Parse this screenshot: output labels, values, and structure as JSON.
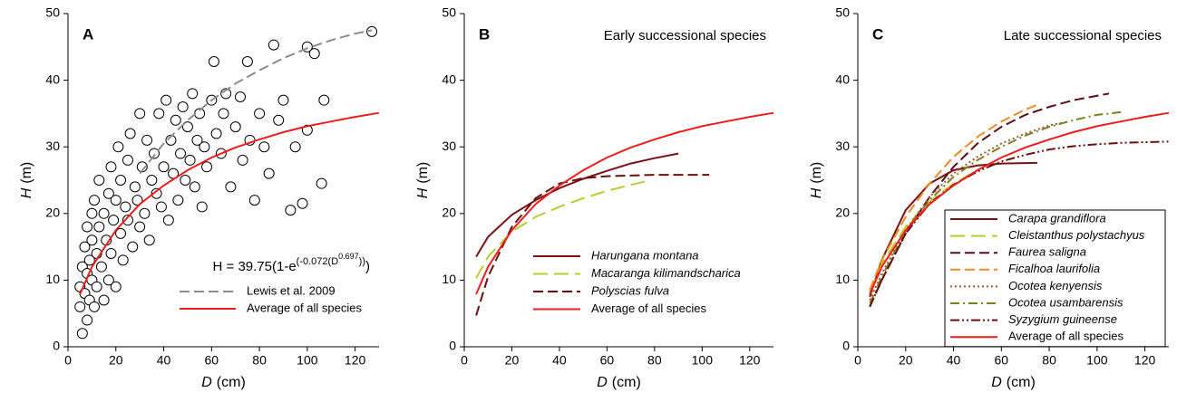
{
  "chart_data": [
    {
      "type": "scatter",
      "label": "A",
      "xlabel": {
        "symbol": "D",
        "unit": "(cm)"
      },
      "ylabel": {
        "symbol": "H",
        "unit": "(m)"
      },
      "xlim": [
        0,
        130
      ],
      "xticks": [
        0,
        20,
        40,
        60,
        80,
        100,
        120
      ],
      "ylim": [
        0,
        50
      ],
      "yticks": [
        0,
        10,
        20,
        30,
        40,
        50
      ],
      "annotation": [
        "H = 39.75(1-e",
        "(-0.072(D",
        "0.697",
        "))",
        ")"
      ],
      "legend": "bottom-right",
      "series": [
        {
          "style": "markers",
          "color": "#000000",
          "x": [
            5,
            5,
            6,
            6,
            7,
            7,
            8,
            8,
            8,
            9,
            9,
            10,
            10,
            10,
            11,
            11,
            12,
            12,
            13,
            13,
            14,
            15,
            15,
            16,
            17,
            17,
            18,
            18,
            19,
            20,
            20,
            21,
            22,
            22,
            23,
            24,
            25,
            25,
            26,
            27,
            28,
            29,
            30,
            30,
            31,
            32,
            33,
            34,
            35,
            36,
            37,
            38,
            39,
            40,
            41,
            42,
            43,
            44,
            45,
            46,
            47,
            48,
            49,
            50,
            51,
            52,
            53,
            54,
            55,
            56,
            57,
            58,
            60,
            61,
            62,
            64,
            65,
            66,
            68,
            70,
            72,
            73,
            75,
            76,
            78,
            80,
            82,
            84,
            86,
            88,
            90,
            93,
            95,
            98,
            100,
            100,
            103,
            106,
            107,
            127
          ],
          "values": [
            9,
            6,
            2,
            12,
            8,
            15,
            4,
            11,
            18,
            7,
            13,
            20,
            10,
            16,
            6,
            22,
            14,
            9,
            18,
            25,
            12,
            20,
            7,
            16,
            23,
            10,
            27,
            14,
            19,
            22,
            9,
            30,
            17,
            25,
            13,
            21,
            28,
            19,
            32,
            15,
            24,
            22,
            35,
            18,
            27,
            20,
            31,
            16,
            25,
            29,
            23,
            35,
            21,
            27,
            37,
            19,
            31,
            26,
            34,
            22,
            29,
            36,
            25,
            33,
            28,
            38,
            24,
            31,
            35,
            21,
            30,
            27,
            37,
            42.8,
            32,
            29,
            35,
            38,
            24,
            33,
            37.5,
            28,
            42.8,
            31,
            22,
            35,
            30,
            26,
            45.3,
            34,
            37,
            20.5,
            30,
            21.5,
            32.5,
            45,
            44,
            24.5,
            37,
            47.3
          ]
        },
        {
          "name": "Lewis et al. 2009",
          "style": "dashed",
          "color": "#8c8c8c",
          "x": [
            30,
            40,
            50,
            60,
            70,
            80,
            90,
            100,
            110,
            120,
            127
          ],
          "values": [
            26,
            30.5,
            34,
            37,
            39.5,
            41.5,
            43.3,
            44.8,
            46,
            47,
            47.5
          ]
        },
        {
          "name": "Average of all species",
          "style": "solid",
          "color": "#ee1c1c",
          "x": [
            5,
            10,
            20,
            30,
            40,
            50,
            60,
            70,
            80,
            90,
            100,
            110,
            120,
            130
          ],
          "values": [
            7.9,
            12,
            17.5,
            21.4,
            24.2,
            26.5,
            28.4,
            29.9,
            31.1,
            32.2,
            33.1,
            33.8,
            34.5,
            35.1
          ]
        }
      ]
    },
    {
      "type": "line",
      "label": "B",
      "title": "Early successional species",
      "xlabel": {
        "symbol": "D",
        "unit": "(cm)"
      },
      "ylabel": {
        "symbol": "H",
        "unit": "(m)"
      },
      "xlim": [
        0,
        130
      ],
      "xticks": [
        0,
        20,
        40,
        60,
        80,
        100,
        120
      ],
      "ylim": [
        0,
        50
      ],
      "yticks": [
        0,
        10,
        20,
        30,
        40,
        50
      ],
      "legend": "bottom-center",
      "series": [
        {
          "name": "Harungana montana",
          "italic": true,
          "style": "solid",
          "color": "#7b1113",
          "x": [
            5,
            10,
            20,
            30,
            40,
            50,
            60,
            70,
            80,
            90
          ],
          "values": [
            13.5,
            16.5,
            19.8,
            22,
            23.8,
            25.2,
            26.4,
            27.5,
            28.3,
            29
          ]
        },
        {
          "name": "Macaranga kilimandscharica",
          "italic": true,
          "style": "longdash",
          "color": "#b8cc2c",
          "x": [
            5,
            10,
            20,
            30,
            40,
            50,
            60,
            70,
            76
          ],
          "values": [
            10.3,
            13.5,
            17.3,
            19.5,
            21,
            22.3,
            23.4,
            24.3,
            24.8
          ]
        },
        {
          "name": "Polyscias fulva",
          "italic": true,
          "style": "dashed",
          "color": "#6b0f10",
          "x": [
            5,
            10,
            20,
            30,
            40,
            50,
            60,
            80,
            103
          ],
          "values": [
            4.7,
            10.5,
            18,
            22.3,
            24.5,
            25.3,
            25.6,
            25.8,
            25.8
          ]
        },
        {
          "name": "Average of all species",
          "style": "solid",
          "color": "#ee1c1c",
          "x": [
            5,
            10,
            20,
            30,
            40,
            50,
            60,
            70,
            80,
            90,
            100,
            110,
            120,
            130
          ],
          "values": [
            7.9,
            12,
            17.5,
            21.4,
            24.2,
            26.5,
            28.4,
            29.9,
            31.1,
            32.2,
            33.1,
            33.8,
            34.5,
            35.1
          ]
        }
      ]
    },
    {
      "type": "line",
      "label": "C",
      "title": "Late successional species",
      "xlabel": {
        "symbol": "D",
        "unit": "(cm)"
      },
      "ylabel": {
        "symbol": "H",
        "unit": "(m)"
      },
      "xlim": [
        0,
        130
      ],
      "xticks": [
        0,
        20,
        40,
        60,
        80,
        100,
        120
      ],
      "ylim": [
        0,
        50
      ],
      "yticks": [
        0,
        10,
        20,
        30,
        40,
        50
      ],
      "legend": "bottom-left-boxed",
      "series": [
        {
          "name": "Carapa grandiflora",
          "italic": true,
          "style": "solid",
          "color": "#7b1113",
          "x": [
            5,
            10,
            20,
            30,
            40,
            50,
            60,
            75
          ],
          "values": [
            7.5,
            13,
            20.5,
            24.5,
            26.5,
            27.2,
            27.5,
            27.6
          ]
        },
        {
          "name": "Cleistanthus polystachyus",
          "italic": true,
          "style": "longdash",
          "color": "#b8cc2c",
          "x": [
            5,
            10,
            20,
            30,
            40,
            50
          ],
          "values": [
            8.3,
            12.5,
            18,
            21.8,
            24.5,
            26.5
          ]
        },
        {
          "name": "Faurea saligna",
          "italic": true,
          "style": "dashed",
          "color": "#5a0c0e",
          "x": [
            5,
            10,
            20,
            30,
            40,
            50,
            60,
            70,
            80,
            90,
            105
          ],
          "values": [
            6,
            10,
            17,
            22.5,
            27,
            30.5,
            33,
            34.8,
            36,
            37,
            38
          ]
        },
        {
          "name": "Ficalhoa laurifolia",
          "italic": true,
          "style": "dashed",
          "color": "#f08a24",
          "x": [
            5,
            10,
            20,
            30,
            40,
            50,
            60,
            70,
            75
          ],
          "values": [
            8.5,
            13,
            19.5,
            24.5,
            28.5,
            31.5,
            33.8,
            35.6,
            36.3
          ]
        },
        {
          "name": "Ocotea kenyensis",
          "italic": true,
          "style": "dotted",
          "color": "#9c5a2a",
          "x": [
            5,
            10,
            20,
            30,
            40,
            50,
            60,
            70,
            80,
            85
          ],
          "values": [
            7,
            11,
            17.5,
            22.5,
            26,
            28.5,
            30.5,
            32,
            33.2,
            33.6
          ]
        },
        {
          "name": "Ocotea usambarensis",
          "italic": true,
          "style": "dashdot",
          "color": "#7f7f22",
          "x": [
            5,
            10,
            20,
            30,
            40,
            50,
            60,
            70,
            80,
            90,
            100,
            110
          ],
          "values": [
            6.5,
            10.5,
            17.5,
            22,
            25.5,
            28,
            30,
            31.7,
            33,
            34,
            34.8,
            35.2
          ]
        },
        {
          "name": "Syzygium guineense",
          "italic": true,
          "style": "dashdotdot",
          "color": "#6b0f10",
          "x": [
            5,
            10,
            20,
            30,
            40,
            50,
            60,
            70,
            80,
            90,
            100,
            110,
            130
          ],
          "values": [
            6,
            10,
            17,
            21.5,
            24.3,
            26.3,
            27.8,
            28.8,
            29.6,
            30.1,
            30.4,
            30.6,
            30.8
          ]
        },
        {
          "name": "Average of all species",
          "style": "solid",
          "color": "#ee1c1c",
          "x": [
            5,
            10,
            20,
            30,
            40,
            50,
            60,
            70,
            80,
            90,
            100,
            110,
            120,
            130
          ],
          "values": [
            7.9,
            12,
            17.5,
            21.4,
            24.2,
            26.5,
            28.4,
            29.9,
            31.1,
            32.2,
            33.1,
            33.8,
            34.5,
            35.1
          ]
        }
      ]
    }
  ]
}
